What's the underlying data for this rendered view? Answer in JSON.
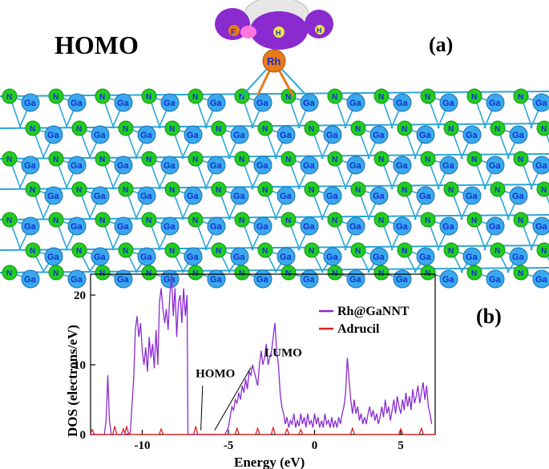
{
  "panel_a": {
    "title": "HOMO",
    "panel_label": "(a)",
    "metal_atom": "Rh",
    "framework_atoms": [
      "Ga",
      "N"
    ],
    "molecule_atoms": [
      "F",
      "H",
      "H"
    ],
    "colors": {
      "nitrogen": "#22cc22",
      "gallium": "#3aa8ee",
      "rhodium": "#e87a1c",
      "orbital_lobe": "#8a2bd0",
      "orbital_light": "#e8e8e8",
      "bond": "#2aa7d8"
    }
  },
  "chart_data": {
    "type": "line",
    "panel_label": "(b)",
    "xlabel": "Energy (eV)",
    "ylabel": "DOS (electrons/eV)",
    "xlim": [
      -13,
      7
    ],
    "ylim": [
      0,
      23
    ],
    "xticks": [
      -10,
      -5,
      0,
      5
    ],
    "yticks": [
      0,
      10,
      20
    ],
    "legend_position": "top-right",
    "annotations": [
      {
        "text": "LUMO",
        "x": -2.9,
        "y": 11.2
      },
      {
        "text": "HOMO",
        "x": -6.9,
        "y": 8.2
      }
    ],
    "series": [
      {
        "name": "Rh@GaNNT",
        "color": "#8a2bd0",
        "points": [
          [
            -13,
            0
          ],
          [
            -12.2,
            0
          ],
          [
            -12.1,
            2
          ],
          [
            -12.0,
            8.5
          ],
          [
            -11.9,
            2
          ],
          [
            -11.8,
            0
          ],
          [
            -11.0,
            0
          ],
          [
            -10.7,
            0.2
          ],
          [
            -10.5,
            8
          ],
          [
            -10.4,
            15
          ],
          [
            -10.3,
            17
          ],
          [
            -10.2,
            14
          ],
          [
            -10.1,
            16
          ],
          [
            -10.0,
            12
          ],
          [
            -9.9,
            10
          ],
          [
            -9.8,
            12.5
          ],
          [
            -9.7,
            9
          ],
          [
            -9.6,
            14
          ],
          [
            -9.5,
            11
          ],
          [
            -9.4,
            13
          ],
          [
            -9.3,
            9.5
          ],
          [
            -9.2,
            15
          ],
          [
            -9.1,
            10
          ],
          [
            -9.0,
            19
          ],
          [
            -8.9,
            21
          ],
          [
            -8.8,
            18
          ],
          [
            -8.7,
            16
          ],
          [
            -8.6,
            18
          ],
          [
            -8.5,
            15
          ],
          [
            -8.4,
            20
          ],
          [
            -8.3,
            23
          ],
          [
            -8.2,
            17
          ],
          [
            -8.1,
            21
          ],
          [
            -8.0,
            14
          ],
          [
            -7.9,
            19
          ],
          [
            -7.8,
            20
          ],
          [
            -7.7,
            16
          ],
          [
            -7.6,
            21
          ],
          [
            -7.5,
            17
          ],
          [
            -7.4,
            20
          ],
          [
            -7.35,
            0
          ],
          [
            -5.2,
            0
          ],
          [
            -5.0,
            1
          ],
          [
            -4.9,
            2.5
          ],
          [
            -4.8,
            4
          ],
          [
            -4.7,
            3.5
          ],
          [
            -4.6,
            5
          ],
          [
            -4.5,
            4.5
          ],
          [
            -4.4,
            6
          ],
          [
            -4.3,
            5
          ],
          [
            -4.2,
            7
          ],
          [
            -4.1,
            6
          ],
          [
            -4.0,
            8
          ],
          [
            -3.9,
            6.5
          ],
          [
            -3.8,
            9
          ],
          [
            -3.7,
            8.5
          ],
          [
            -3.6,
            10
          ],
          [
            -3.5,
            9
          ],
          [
            -3.4,
            8
          ],
          [
            -3.3,
            7
          ],
          [
            -3.2,
            10
          ],
          [
            -3.1,
            12
          ],
          [
            -3.0,
            10
          ],
          [
            -2.9,
            11
          ],
          [
            -2.8,
            13
          ],
          [
            -2.7,
            10
          ],
          [
            -2.6,
            11
          ],
          [
            -2.5,
            12
          ],
          [
            -2.4,
            14
          ],
          [
            -2.3,
            16
          ],
          [
            -2.2,
            12
          ],
          [
            -2.1,
            10
          ],
          [
            -2.0,
            6
          ],
          [
            -1.9,
            4
          ],
          [
            -1.8,
            3
          ],
          [
            -1.7,
            1.5
          ],
          [
            -1.6,
            2.5
          ],
          [
            -1.5,
            1
          ],
          [
            -1.4,
            2
          ],
          [
            -1.3,
            1.5
          ],
          [
            -1.2,
            3
          ],
          [
            -1.1,
            1
          ],
          [
            -1.0,
            2
          ],
          [
            -0.9,
            1.2
          ],
          [
            -0.8,
            3
          ],
          [
            -0.7,
            1.5
          ],
          [
            -0.6,
            2.5
          ],
          [
            -0.5,
            1
          ],
          [
            -0.4,
            3
          ],
          [
            -0.3,
            1.5
          ],
          [
            -0.2,
            2
          ],
          [
            -0.1,
            1
          ],
          [
            0.0,
            3
          ],
          [
            0.1,
            1.5
          ],
          [
            0.2,
            2.5
          ],
          [
            0.3,
            1
          ],
          [
            0.4,
            2
          ],
          [
            0.5,
            1
          ],
          [
            0.6,
            3
          ],
          [
            0.7,
            1.5
          ],
          [
            0.8,
            2
          ],
          [
            0.9,
            1
          ],
          [
            1.0,
            2.5
          ],
          [
            1.1,
            1
          ],
          [
            1.2,
            2
          ],
          [
            1.3,
            1
          ],
          [
            1.4,
            2.5
          ],
          [
            1.5,
            1.5
          ],
          [
            1.6,
            3
          ],
          [
            1.7,
            4
          ],
          [
            1.8,
            6
          ],
          [
            1.9,
            11
          ],
          [
            2.0,
            8
          ],
          [
            2.1,
            5
          ],
          [
            2.2,
            3
          ],
          [
            2.3,
            5
          ],
          [
            2.4,
            3
          ],
          [
            2.5,
            4
          ],
          [
            2.6,
            2
          ],
          [
            2.7,
            3
          ],
          [
            2.8,
            1.5
          ],
          [
            2.9,
            2.5
          ],
          [
            3.0,
            1.5
          ],
          [
            3.1,
            3
          ],
          [
            3.2,
            4
          ],
          [
            3.3,
            2.5
          ],
          [
            3.4,
            3.5
          ],
          [
            3.5,
            2
          ],
          [
            3.6,
            3
          ],
          [
            3.7,
            1.5
          ],
          [
            3.8,
            2.5
          ],
          [
            3.9,
            4
          ],
          [
            4.0,
            2.5
          ],
          [
            4.1,
            5
          ],
          [
            4.2,
            3
          ],
          [
            4.3,
            4
          ],
          [
            4.4,
            2
          ],
          [
            4.5,
            3.5
          ],
          [
            4.6,
            5
          ],
          [
            4.7,
            3
          ],
          [
            4.8,
            5.5
          ],
          [
            4.9,
            4
          ],
          [
            5.0,
            3
          ],
          [
            5.1,
            5
          ],
          [
            5.2,
            3.5
          ],
          [
            5.3,
            6
          ],
          [
            5.4,
            4
          ],
          [
            5.5,
            5.5
          ],
          [
            5.6,
            3.5
          ],
          [
            5.7,
            6.5
          ],
          [
            5.8,
            4.5
          ],
          [
            5.9,
            5.5
          ],
          [
            6.0,
            7
          ],
          [
            6.1,
            4.5
          ],
          [
            6.2,
            6
          ],
          [
            6.3,
            7.5
          ],
          [
            6.4,
            5
          ],
          [
            6.5,
            7
          ],
          [
            6.6,
            4
          ],
          [
            6.7,
            3
          ],
          [
            6.8,
            1.5
          ]
        ]
      },
      {
        "name": "Adrucil",
        "color": "#e02020",
        "peaks": [
          [
            -12.9,
            0.7
          ],
          [
            -11.6,
            1.2
          ],
          [
            -11.1,
            0.8
          ],
          [
            -10.9,
            1.2
          ],
          [
            -8.9,
            0.8
          ],
          [
            -6.9,
            1.2
          ],
          [
            -4.5,
            0.9
          ],
          [
            -3.3,
            0.9
          ],
          [
            -2.4,
            1.0
          ],
          [
            -1.6,
            0.8
          ],
          [
            -0.8,
            0.7
          ],
          [
            2.2,
            0.9
          ],
          [
            5.0,
            0.8
          ],
          [
            6.2,
            0.9
          ]
        ]
      }
    ]
  }
}
